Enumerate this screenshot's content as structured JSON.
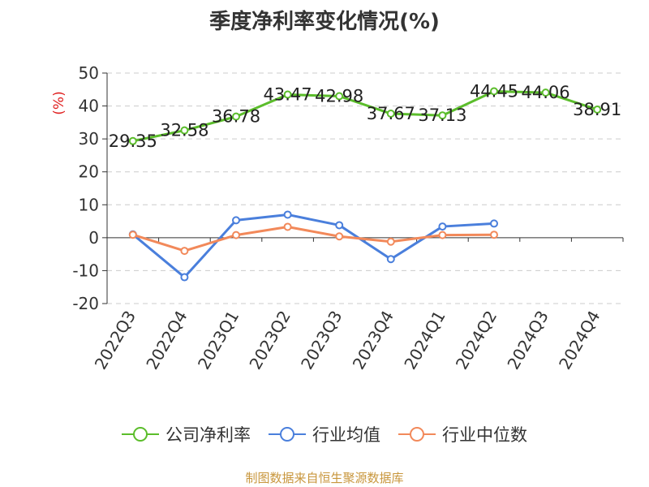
{
  "title": "季度净利率变化情况(%)",
  "source": "制图数据来自恒生聚源数据库",
  "colors": {
    "company": "#5bbd2b",
    "industry_avg": "#4a7fdc",
    "industry_median": "#f2895a",
    "ylabel": "#e02020",
    "grid": "#cccccc",
    "axis": "#333333"
  },
  "chart_data": {
    "type": "line",
    "title": "季度净利率变化情况(%)",
    "xlabel": "",
    "ylabel": "(%)",
    "ylim": [
      -20,
      50
    ],
    "yticks": [
      50,
      40,
      30,
      20,
      10,
      0,
      -10,
      -20
    ],
    "grid": true,
    "legend_position": "bottom",
    "categories": [
      "2022Q3",
      "2022Q4",
      "2023Q1",
      "2023Q2",
      "2023Q3",
      "2023Q4",
      "2024Q1",
      "2024Q2",
      "2024Q3",
      "2024Q4"
    ],
    "series": [
      {
        "name": "公司净利率",
        "color": "#5bbd2b",
        "values": [
          29.35,
          32.58,
          36.78,
          43.47,
          42.98,
          37.67,
          37.13,
          44.45,
          44.06,
          38.91
        ],
        "labels": [
          "29.35",
          "32.58",
          "36.78",
          "43.47",
          "42.98",
          "37.67",
          "37.13",
          "44.45",
          "44.06",
          "38.91"
        ]
      },
      {
        "name": "行业均值",
        "color": "#4a7fdc",
        "values": [
          1.0,
          -12.0,
          5.3,
          7.0,
          3.8,
          -6.5,
          3.4,
          4.3,
          null,
          null
        ]
      },
      {
        "name": "行业中位数",
        "color": "#f2895a",
        "values": [
          0.9,
          -4.0,
          0.8,
          3.3,
          0.4,
          -1.2,
          0.8,
          0.9,
          null,
          null
        ]
      }
    ]
  }
}
